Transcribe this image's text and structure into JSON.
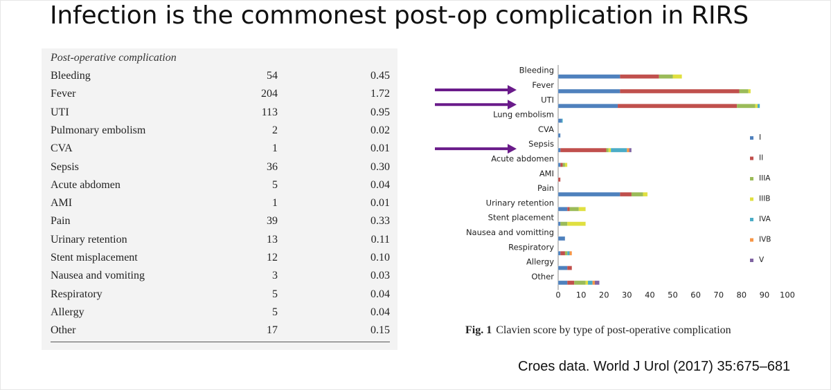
{
  "slide": {
    "title": "Infection is the commonest post-op complication in RIRS",
    "citation": "Croes data. World J Urol (2017) 35:675–681"
  },
  "table": {
    "header": "Post-operative complication",
    "rows": [
      {
        "name": "Bleeding",
        "n": "54",
        "pct": "0.45"
      },
      {
        "name": "Fever",
        "n": "204",
        "pct": "1.72"
      },
      {
        "name": "UTI",
        "n": "113",
        "pct": "0.95"
      },
      {
        "name": "Pulmonary embolism",
        "n": "2",
        "pct": "0.02"
      },
      {
        "name": "CVA",
        "n": "1",
        "pct": "0.01"
      },
      {
        "name": "Sepsis",
        "n": "36",
        "pct": "0.30"
      },
      {
        "name": "Acute abdomen",
        "n": "5",
        "pct": "0.04"
      },
      {
        "name": "AMI",
        "n": "1",
        "pct": "0.01"
      },
      {
        "name": "Pain",
        "n": "39",
        "pct": "0.33"
      },
      {
        "name": "Urinary retention",
        "n": "13",
        "pct": "0.11"
      },
      {
        "name": "Stent misplacement",
        "n": "12",
        "pct": "0.10"
      },
      {
        "name": "Nausea and vomiting",
        "n": "3",
        "pct": "0.03"
      },
      {
        "name": "Respiratory",
        "n": "5",
        "pct": "0.04"
      },
      {
        "name": "Allergy",
        "n": "5",
        "pct": "0.04"
      },
      {
        "name": "Other",
        "n": "17",
        "pct": "0.15"
      }
    ]
  },
  "figure": {
    "caption_label": "Fig. 1",
    "caption_text": "Clavien score by type of post-operative complication",
    "arrow_color": "#6a1b8a",
    "highlighted": [
      "Fever",
      "UTI",
      "Sepsis"
    ]
  },
  "chart_data": {
    "type": "bar",
    "orientation": "horizontal",
    "stacked": true,
    "title": "",
    "xlabel": "",
    "ylabel": "",
    "xlim": [
      0,
      100
    ],
    "xticks": [
      0,
      10,
      20,
      30,
      40,
      50,
      60,
      70,
      80,
      90,
      100
    ],
    "legend_position": "right",
    "categories": [
      "Bleeding",
      "Fever",
      "UTI",
      "Lung embolism",
      "CVA",
      "Sepsis",
      "Acute abdomen",
      "AMI",
      "Pain",
      "Urinary retention",
      "Stent placement",
      "Nausea and vomitting",
      "Respiratory",
      "Allergy",
      "Other"
    ],
    "series": [
      {
        "name": "I",
        "color": "#4f81bd",
        "values": [
          27,
          27,
          26,
          1.5,
          1,
          1,
          1,
          0,
          27,
          4,
          1,
          3,
          1,
          4,
          4
        ]
      },
      {
        "name": "II",
        "color": "#c0504d",
        "values": [
          17,
          52,
          52,
          0,
          0,
          20,
          1,
          1,
          5,
          1,
          0,
          0,
          2,
          2,
          3
        ]
      },
      {
        "name": "IIIA",
        "color": "#9bbb59",
        "values": [
          6,
          4,
          8,
          0,
          0,
          1,
          1,
          0,
          5,
          4,
          3,
          0,
          1,
          0,
          5
        ]
      },
      {
        "name": "IIIB",
        "color": "#e0e040",
        "values": [
          4,
          1,
          1,
          0,
          0,
          1,
          1,
          0,
          2,
          3,
          8,
          0,
          0,
          0,
          1
        ]
      },
      {
        "name": "IVA",
        "color": "#4bacc6",
        "values": [
          0,
          0,
          1,
          0.5,
          0,
          7,
          0,
          0,
          0,
          0,
          0,
          0,
          1,
          0,
          2
        ]
      },
      {
        "name": "IVB",
        "color": "#f79646",
        "values": [
          0,
          0,
          0,
          0,
          0,
          1,
          0,
          0,
          0,
          0,
          0,
          0,
          1,
          0,
          1
        ]
      },
      {
        "name": "V",
        "color": "#8064a2",
        "values": [
          0,
          0,
          0,
          0,
          0,
          1,
          0,
          0,
          0,
          0,
          0,
          0,
          0,
          0,
          2
        ]
      }
    ]
  }
}
